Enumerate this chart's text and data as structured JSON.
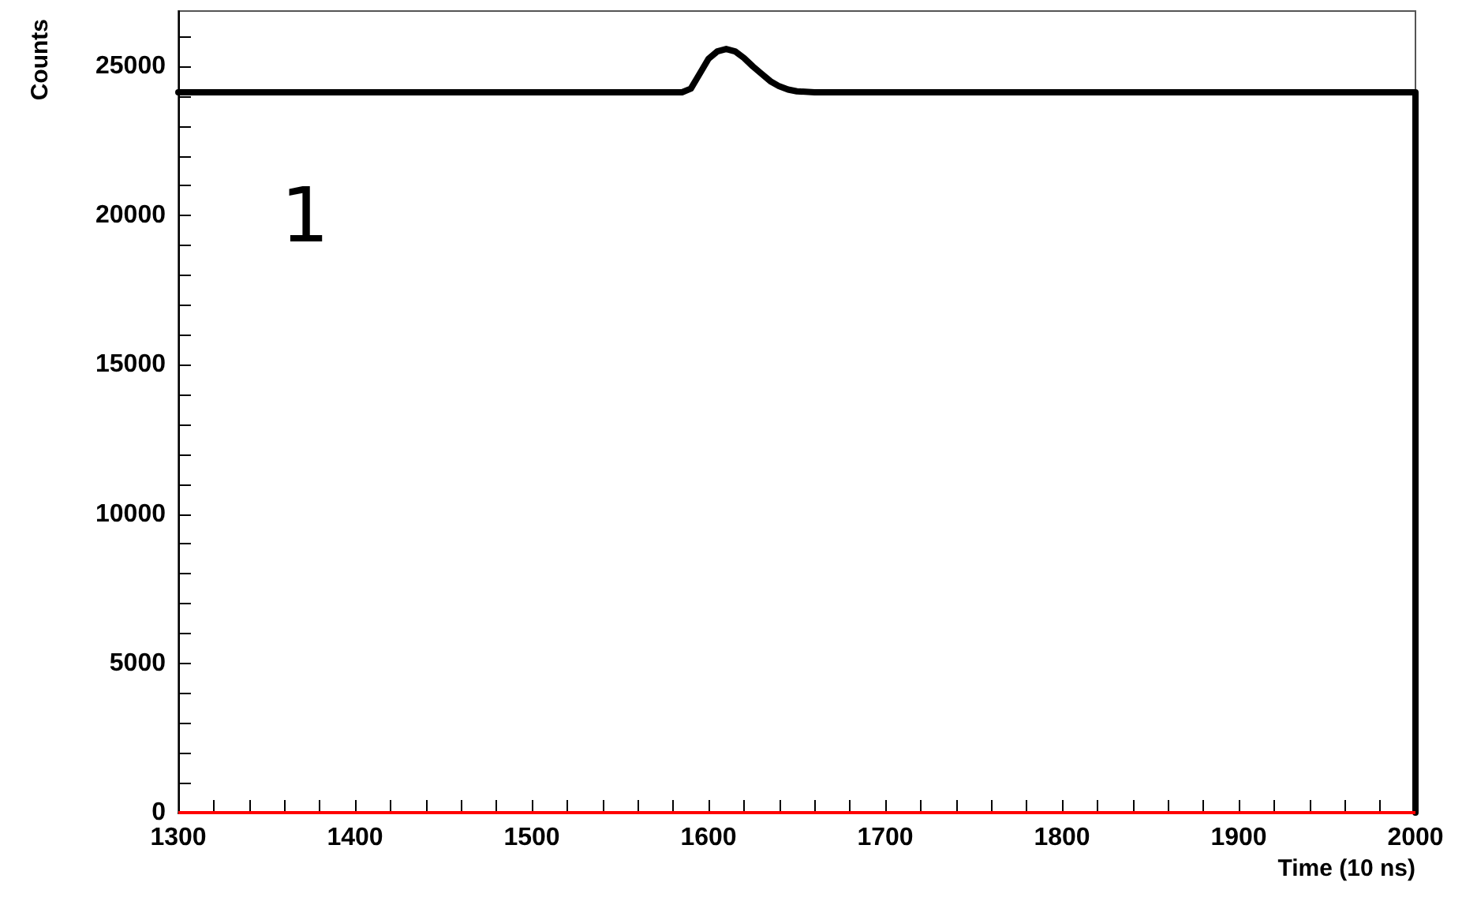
{
  "chart_data": {
    "type": "line",
    "xlabel": "Time (10 ns)",
    "ylabel": "Counts",
    "annotations": [
      "1"
    ],
    "x": [
      1300,
      1585,
      1590,
      1595,
      1600,
      1605,
      1610,
      1615,
      1620,
      1625,
      1630,
      1635,
      1640,
      1645,
      1650,
      1660,
      2000,
      2000
    ],
    "series": [
      {
        "color": "#000000",
        "values": [
          24130,
          24130,
          24250,
          24750,
          25250,
          25500,
          25580,
          25500,
          25280,
          25000,
          24750,
          24500,
          24330,
          24220,
          24160,
          24130,
          24130,
          0
        ]
      }
    ],
    "ref_lines": [
      {
        "axis": "y",
        "value": 0,
        "color": "#ff0000"
      }
    ],
    "xlim": [
      1300,
      2000
    ],
    "xticks": [
      1300,
      {
        "value": 1320,
        "label": null
      },
      {
        "value": 1340,
        "label": null
      },
      {
        "value": 1360,
        "label": null
      },
      {
        "value": 1380,
        "label": null
      },
      1400,
      {
        "value": 1420,
        "label": null
      },
      {
        "value": 1440,
        "label": null
      },
      {
        "value": 1460,
        "label": null
      },
      {
        "value": 1480,
        "label": null
      },
      1500,
      {
        "value": 1520,
        "label": null
      },
      {
        "value": 1540,
        "label": null
      },
      {
        "value": 1560,
        "label": null
      },
      {
        "value": 1580,
        "label": null
      },
      1600,
      {
        "value": 1620,
        "label": null
      },
      {
        "value": 1640,
        "label": null
      },
      {
        "value": 1660,
        "label": null
      },
      {
        "value": 1680,
        "label": null
      },
      1700,
      {
        "value": 1720,
        "label": null
      },
      {
        "value": 1740,
        "label": null
      },
      {
        "value": 1760,
        "label": null
      },
      {
        "value": 1780,
        "label": null
      },
      1800,
      {
        "value": 1820,
        "label": null
      },
      {
        "value": 1840,
        "label": null
      },
      {
        "value": 1860,
        "label": null
      },
      {
        "value": 1880,
        "label": null
      },
      1900,
      {
        "value": 1920,
        "label": null
      },
      {
        "value": 1940,
        "label": null
      },
      {
        "value": 1960,
        "label": null
      },
      {
        "value": 1980,
        "label": null
      },
      2000
    ],
    "ylim": [
      0,
      26850
    ],
    "yticks": [
      0,
      {
        "value": 1000,
        "label": null
      },
      {
        "value": 2000,
        "label": null
      },
      {
        "value": 3000,
        "label": null
      },
      {
        "value": 4000,
        "label": null
      },
      5000,
      {
        "value": 6000,
        "label": null
      },
      {
        "value": 7000,
        "label": null
      },
      {
        "value": 8000,
        "label": null
      },
      {
        "value": 9000,
        "label": null
      },
      10000,
      {
        "value": 11000,
        "label": null
      },
      {
        "value": 12000,
        "label": null
      },
      {
        "value": 13000,
        "label": null
      },
      {
        "value": 14000,
        "label": null
      },
      15000,
      {
        "value": 16000,
        "label": null
      },
      {
        "value": 17000,
        "label": null
      },
      {
        "value": 18000,
        "label": null
      },
      {
        "value": 19000,
        "label": null
      },
      20000,
      {
        "value": 21000,
        "label": null
      },
      {
        "value": 22000,
        "label": null
      },
      {
        "value": 23000,
        "label": null
      },
      {
        "value": 24000,
        "label": null
      },
      25000,
      {
        "value": 26000,
        "label": null
      }
    ],
    "marker": "none",
    "line_style": "solid"
  }
}
